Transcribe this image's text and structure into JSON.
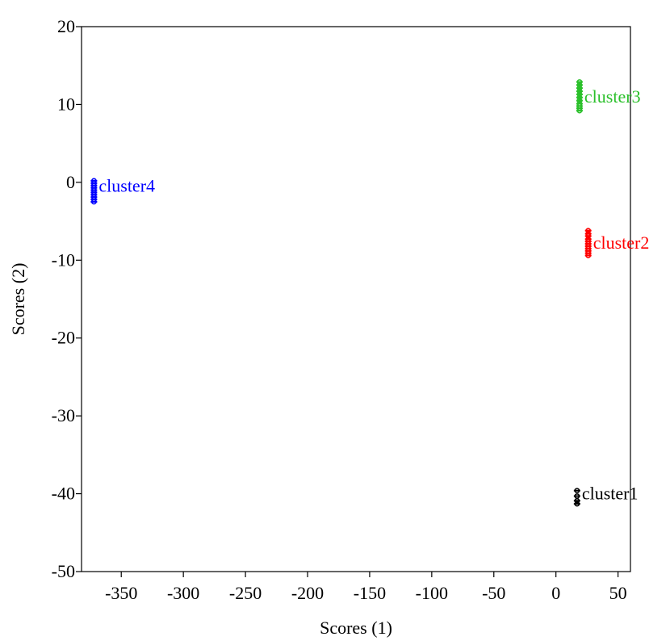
{
  "chart_data": {
    "type": "scatter",
    "title": "",
    "xlabel": "Scores (1)",
    "ylabel": "Scores (2)",
    "xlim": [
      -382,
      60
    ],
    "ylim": [
      -50,
      20
    ],
    "xticks": [
      -350,
      -300,
      -250,
      -200,
      -150,
      -100,
      -50,
      0,
      50
    ],
    "yticks": [
      20,
      10,
      0,
      -10,
      -20,
      -30,
      -40,
      -50
    ],
    "xtick_labels": [
      "-350",
      "-300",
      "-250",
      "-200",
      "-150",
      "-100",
      "-50",
      "0",
      "50"
    ],
    "ytick_labels": [
      "20",
      "10",
      "0",
      "-10",
      "-20",
      "-30",
      "-40",
      "-50"
    ],
    "grid": false,
    "legend": "none",
    "series": [
      {
        "name": "cluster1",
        "color": "#000000",
        "label_at": [
          17,
          -40
        ],
        "x": [
          17,
          17,
          17,
          17
        ],
        "y": [
          -39.6,
          -40.3,
          -40.9,
          -41.3
        ]
      },
      {
        "name": "cluster2",
        "color": "#ff0000",
        "label_at": [
          26,
          -7.8
        ],
        "x": [
          26,
          26,
          26,
          26,
          26,
          26,
          26,
          26,
          26,
          26,
          26
        ],
        "y": [
          -6.2,
          -6.6,
          -6.9,
          -7.3,
          -7.6,
          -7.9,
          -8.2,
          -8.5,
          -8.8,
          -9.1,
          -9.4
        ]
      },
      {
        "name": "cluster3",
        "color": "#2bc02b",
        "label_at": [
          19,
          11
        ],
        "x": [
          19,
          19,
          19,
          19,
          19,
          19,
          19,
          19,
          19,
          19,
          19
        ],
        "y": [
          12.9,
          12.5,
          12.1,
          11.7,
          11.3,
          10.9,
          10.5,
          10.1,
          9.8,
          9.5,
          9.2
        ]
      },
      {
        "name": "cluster4",
        "color": "#0000ff",
        "label_at": [
          -372,
          -0.5
        ],
        "x": [
          -372,
          -372,
          -372,
          -372,
          -372,
          -372,
          -372,
          -372,
          -372,
          -372
        ],
        "y": [
          0.2,
          -0.1,
          -0.4,
          -0.7,
          -1.0,
          -1.3,
          -1.6,
          -1.9,
          -2.2,
          -2.5
        ]
      }
    ]
  }
}
